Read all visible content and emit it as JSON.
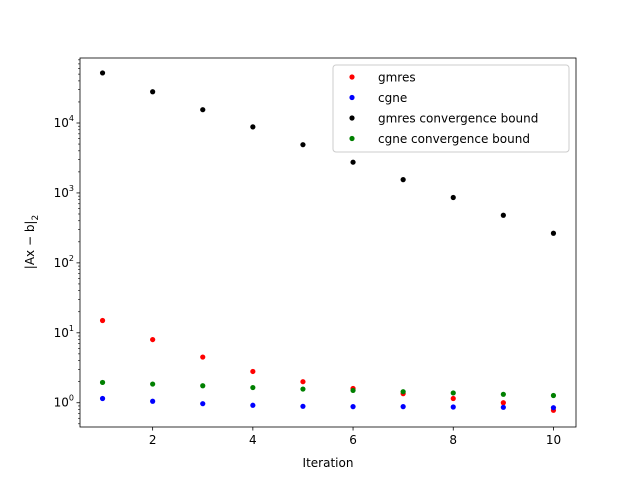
{
  "chart_data": {
    "type": "scatter",
    "title": "",
    "xlabel": "Iteration",
    "ylabel": "|Ax − b|2",
    "ylabel_main": "|Ax − b|",
    "ylabel_sub": "2",
    "x": [
      1,
      2,
      3,
      4,
      5,
      6,
      7,
      8,
      9,
      10
    ],
    "xlim": [
      0.55,
      10.45
    ],
    "ylim": [
      0.45,
      85000
    ],
    "yscale": "log",
    "x_ticks": [
      2,
      4,
      6,
      8,
      10
    ],
    "x_tick_labels": [
      "2",
      "4",
      "6",
      "8",
      "10"
    ],
    "y_ticks": [
      1,
      10,
      100,
      1000,
      10000
    ],
    "y_tick_base": "10",
    "y_tick_exponents": [
      "0",
      "1",
      "2",
      "3",
      "4"
    ],
    "grid": false,
    "legend_position": "top-right",
    "series": [
      {
        "name": "gmres",
        "color": "#ff0000",
        "values": [
          15,
          8,
          4.5,
          2.8,
          2.0,
          1.6,
          1.35,
          1.15,
          1.0,
          0.78
        ]
      },
      {
        "name": "cgne",
        "color": "#0000ff",
        "values": [
          1.15,
          1.05,
          0.97,
          0.92,
          0.89,
          0.88,
          0.88,
          0.87,
          0.86,
          0.85
        ]
      },
      {
        "name": "gmres convergence bound",
        "color": "#000000",
        "values": [
          52000,
          28000,
          15500,
          8800,
          4900,
          2750,
          1550,
          860,
          480,
          265
        ]
      },
      {
        "name": "cgne convergence bound",
        "color": "#008000",
        "values": [
          1.95,
          1.85,
          1.75,
          1.65,
          1.57,
          1.5,
          1.44,
          1.38,
          1.32,
          1.27
        ]
      }
    ]
  }
}
